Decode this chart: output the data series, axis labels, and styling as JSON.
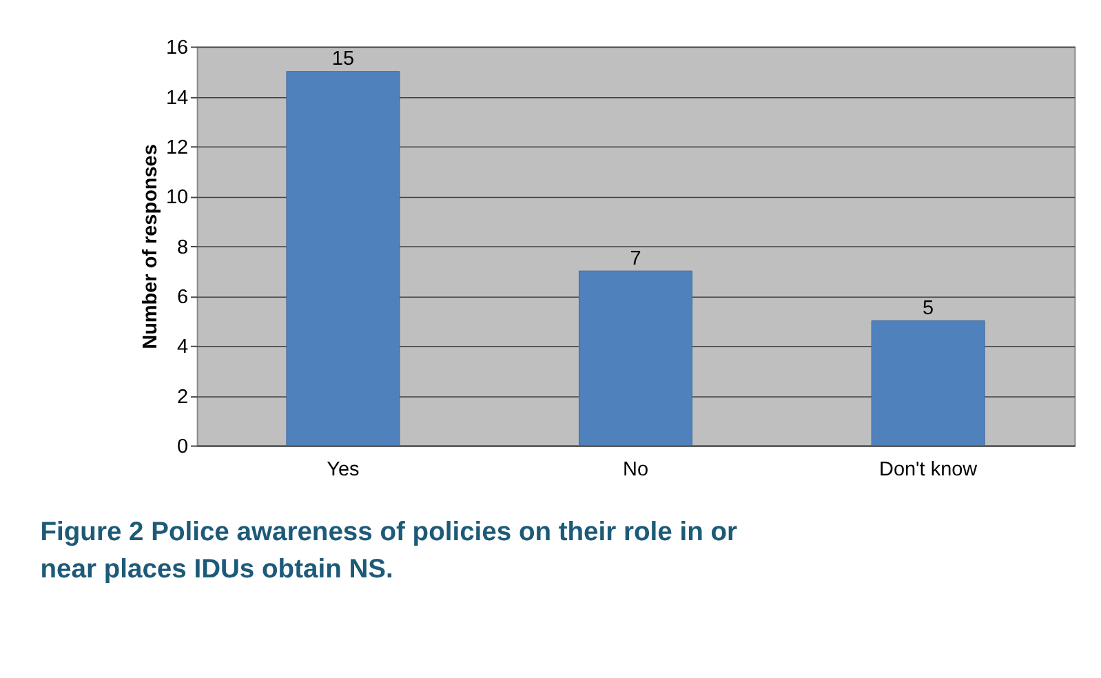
{
  "chart_data": {
    "type": "bar",
    "ylabel": "Number of responses",
    "categories": [
      "Yes",
      "No",
      "Don't know"
    ],
    "values": [
      15,
      7,
      5
    ],
    "color": "#4f81bd",
    "ylim": [
      0,
      16
    ],
    "yticks": [
      0,
      2,
      4,
      6,
      8,
      10,
      12,
      14,
      16
    ],
    "grid": "y",
    "data_labels": true,
    "annotations": [
      "Figure 2 Police awareness of policies on their role in or near places IDUs obtain NS."
    ]
  }
}
